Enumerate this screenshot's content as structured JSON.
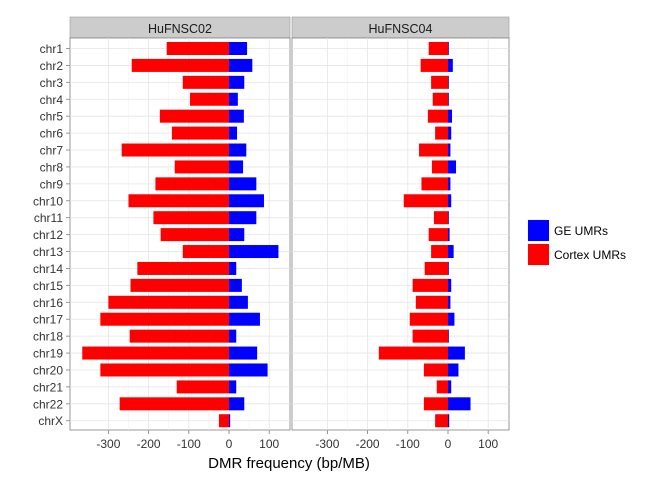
{
  "chart_data": {
    "type": "bar",
    "orientation": "horizontal",
    "stacked": "diverging",
    "xlabel": "DMR frequency (bp/MB)",
    "xticks": [
      -300,
      -200,
      -100,
      0,
      100
    ],
    "xlim": [
      -370,
      150
    ],
    "grid": true,
    "legend_position": "right",
    "categories": [
      "chr1",
      "chr2",
      "chr3",
      "chr4",
      "chr5",
      "chr6",
      "chr7",
      "chr8",
      "chr9",
      "chr10",
      "chr11",
      "chr12",
      "chr13",
      "chr14",
      "chr15",
      "chr16",
      "chr17",
      "chr18",
      "chr19",
      "chr20",
      "chr21",
      "chr22",
      "chrX"
    ],
    "legend": [
      {
        "name": "GE UMRs",
        "color": "#0000ff"
      },
      {
        "name": "Cortex UMRs",
        "color": "#ff0000"
      }
    ],
    "panels": [
      {
        "title": "HuFNSC02",
        "series": [
          {
            "name": "GE UMRs",
            "values": [
              45,
              58,
              38,
              22,
              37,
              20,
              43,
              35,
              68,
              87,
              68,
              38,
              123,
              18,
              32,
              47,
              77,
              18,
              70,
              96,
              18,
              38,
              3
            ]
          },
          {
            "name": "Cortex UMRs",
            "values": [
              -155,
              -242,
              -115,
              -97,
              -172,
              -142,
              -267,
              -135,
              -183,
              -250,
              -188,
              -170,
              -115,
              -228,
              -245,
              -300,
              -320,
              -247,
              -365,
              -320,
              -130,
              -272,
              -25
            ]
          }
        ]
      },
      {
        "title": "HuFNSC04",
        "series": [
          {
            "name": "GE UMRs",
            "values": [
              2,
              12,
              2,
              2,
              10,
              8,
              6,
              20,
              6,
              8,
              2,
              4,
              14,
              2,
              8,
              6,
              16,
              2,
              42,
              26,
              8,
              56,
              3
            ]
          },
          {
            "name": "Cortex UMRs",
            "values": [
              -48,
              -68,
              -42,
              -38,
              -50,
              -32,
              -72,
              -40,
              -66,
              -110,
              -35,
              -48,
              -42,
              -58,
              -88,
              -80,
              -95,
              -88,
              -172,
              -60,
              -28,
              -60,
              -32
            ]
          }
        ]
      }
    ]
  }
}
